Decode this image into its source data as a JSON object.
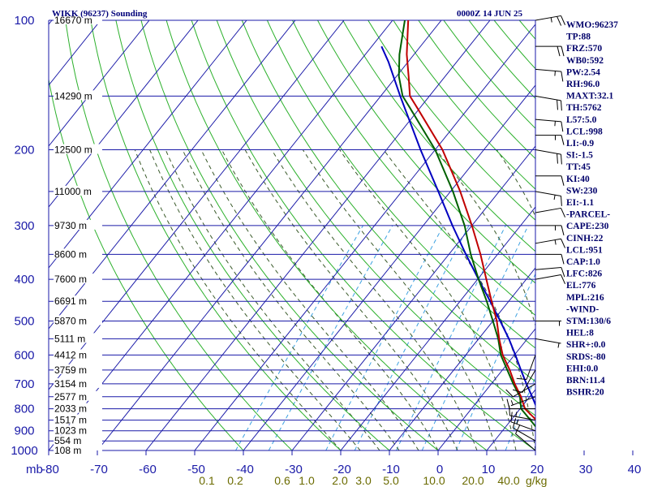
{
  "header": {
    "station": "WIKK (96237) Sounding",
    "time": "0000Z 14 JUN 25"
  },
  "indices": [
    "WMO:96237",
    "TP:88",
    "FRZ:570",
    "WB0:592",
    "PW:2.54",
    "RH:96.0",
    "MAXT:32.1",
    "TH:5762",
    "L57:5.0",
    "LCL:998",
    "LI:-0.9",
    "SI:-1.5",
    "TT:45",
    "KI:40",
    "SW:230",
    "EI:-1.1",
    "-PARCEL-",
    "CAPE:230",
    "CINH:22",
    "LCL:951",
    "CAP:1.0",
    "LFC:826",
    "EL:776",
    "MPL:216",
    "-WIND-",
    "STM:130/6",
    "HEL:8",
    "SHR+:0.0",
    "SRDS:-80",
    "EHI:0.0",
    "BRN:11.4",
    "BSHR:20"
  ],
  "colors": {
    "isobar": "#1a1aa8",
    "isotherm": "#1a1aa8",
    "dry_adiabat": "#2bb02b",
    "moist_adiabat": "#3a5a2a",
    "mixing_ratio": "#3aa0e0",
    "temperature": "#c00000",
    "dewpoint": "#006000",
    "parcel": "#0000c0",
    "wind_barb": "#000000"
  },
  "chart_data": {
    "type": "skew-t",
    "xlabel_unit": "mb",
    "mixing_ratio_unit": "g/kg",
    "pressure_levels": [
      100,
      200,
      300,
      400,
      500,
      600,
      700,
      800,
      900,
      1000
    ],
    "pressure_range": [
      100,
      1000
    ],
    "temperature_ticks": [
      -80,
      -70,
      -60,
      -50,
      -40,
      -30,
      -20,
      -10,
      0,
      10,
      20,
      30,
      40
    ],
    "temperature_tick_labels": [
      "-80",
      "-70",
      "-60",
      "-50",
      "-40",
      "-30",
      "-20",
      "-10",
      "0",
      "10",
      "20",
      "30",
      "40"
    ],
    "mixing_ratio_labels": [
      {
        "label": "0.1",
        "value": 0.1
      },
      {
        "label": "0.2",
        "value": 0.2
      },
      {
        "label": "0.6",
        "value": 0.6
      },
      {
        "label": "1.0",
        "value": 1.0
      },
      {
        "label": "2.0",
        "value": 2.0
      },
      {
        "label": "3.0",
        "value": 3.0
      },
      {
        "label": "5.0",
        "value": 5.0
      },
      {
        "label": "10.0",
        "value": 10.0
      },
      {
        "label": "20.0",
        "value": 20.0
      },
      {
        "label": "40.0",
        "value": 40.0
      }
    ],
    "height_labels": [
      {
        "p": 100,
        "label": "16670 m"
      },
      {
        "p": 150,
        "label": "14290 m"
      },
      {
        "p": 200,
        "label": "12500 m"
      },
      {
        "p": 250,
        "label": "11000 m"
      },
      {
        "p": 300,
        "label": "9730 m"
      },
      {
        "p": 350,
        "label": "8600 m"
      },
      {
        "p": 400,
        "label": "7600 m"
      },
      {
        "p": 450,
        "label": "6691 m"
      },
      {
        "p": 500,
        "label": "5870 m"
      },
      {
        "p": 550,
        "label": "5111 m"
      },
      {
        "p": 600,
        "label": "4412 m"
      },
      {
        "p": 650,
        "label": "3759 m"
      },
      {
        "p": 700,
        "label": "3154 m"
      },
      {
        "p": 750,
        "label": "2577 m"
      },
      {
        "p": 800,
        "label": "2033 m"
      },
      {
        "p": 850,
        "label": "1517 m"
      },
      {
        "p": 900,
        "label": "1023 m"
      },
      {
        "p": 950,
        "label": "554 m"
      },
      {
        "p": 1000,
        "label": "108 m"
      }
    ],
    "series": [
      {
        "key": "temperature",
        "points": [
          [
            1008,
            24.0
          ],
          [
            1000,
            23.5
          ],
          [
            950,
            20.5
          ],
          [
            900,
            17.8
          ],
          [
            850,
            15.2
          ],
          [
            800,
            11.0
          ],
          [
            750,
            8.2
          ],
          [
            700,
            4.8
          ],
          [
            650,
            1.5
          ],
          [
            600,
            -2.4
          ],
          [
            550,
            -5.8
          ],
          [
            500,
            -9.2
          ],
          [
            450,
            -13.5
          ],
          [
            400,
            -18.2
          ],
          [
            350,
            -23.5
          ],
          [
            300,
            -30.0
          ],
          [
            250,
            -38.0
          ],
          [
            200,
            -48.5
          ],
          [
            160,
            -60.5
          ],
          [
            150,
            -64.0
          ],
          [
            135,
            -67.5
          ],
          [
            120,
            -71.5
          ],
          [
            100,
            -76.8
          ]
        ]
      },
      {
        "key": "dewpoint",
        "points": [
          [
            1008,
            24.0
          ],
          [
            1000,
            23.5
          ],
          [
            950,
            20.5
          ],
          [
            900,
            17.5
          ],
          [
            850,
            14.0
          ],
          [
            800,
            10.2
          ],
          [
            750,
            8.0
          ],
          [
            700,
            4.5
          ],
          [
            650,
            1.0
          ],
          [
            600,
            -2.8
          ],
          [
            550,
            -6.0
          ],
          [
            500,
            -10.0
          ],
          [
            450,
            -14.5
          ],
          [
            400,
            -19.8
          ],
          [
            350,
            -25.5
          ],
          [
            300,
            -31.5
          ],
          [
            250,
            -39.5
          ],
          [
            200,
            -50.0
          ],
          [
            160,
            -62.0
          ],
          [
            150,
            -65.5
          ],
          [
            135,
            -69.5
          ],
          [
            120,
            -73.0
          ],
          [
            100,
            -77.5
          ]
        ]
      },
      {
        "key": "parcel",
        "points": [
          [
            1008,
            27.5
          ],
          [
            1000,
            26.5
          ],
          [
            950,
            22.0
          ],
          [
            900,
            19.0
          ],
          [
            850,
            16.0
          ],
          [
            800,
            13.5
          ],
          [
            750,
            10.5
          ],
          [
            700,
            7.2
          ],
          [
            650,
            3.8
          ],
          [
            600,
            0.2
          ],
          [
            550,
            -3.8
          ],
          [
            500,
            -8.5
          ],
          [
            450,
            -13.8
          ],
          [
            400,
            -19.8
          ],
          [
            350,
            -26.5
          ],
          [
            300,
            -34.0
          ],
          [
            250,
            -42.5
          ],
          [
            200,
            -53.0
          ],
          [
            150,
            -66.0
          ],
          [
            125,
            -74.0
          ],
          [
            115,
            -78.0
          ]
        ]
      }
    ],
    "wind_barbs": [
      {
        "p": 100,
        "dir": 80,
        "spd": 25
      },
      {
        "p": 115,
        "dir": 90,
        "spd": 20
      },
      {
        "p": 130,
        "dir": 95,
        "spd": 15
      },
      {
        "p": 150,
        "dir": 100,
        "spd": 20
      },
      {
        "p": 170,
        "dir": 95,
        "spd": 15
      },
      {
        "p": 185,
        "dir": 90,
        "spd": 15
      },
      {
        "p": 200,
        "dir": 100,
        "spd": 20
      },
      {
        "p": 230,
        "dir": 90,
        "spd": 10
      },
      {
        "p": 250,
        "dir": 100,
        "spd": 15
      },
      {
        "p": 280,
        "dir": 80,
        "spd": 10
      },
      {
        "p": 300,
        "dir": 90,
        "spd": 15
      },
      {
        "p": 330,
        "dir": 80,
        "spd": 15
      },
      {
        "p": 350,
        "dir": 90,
        "spd": 10
      },
      {
        "p": 380,
        "dir": 85,
        "spd": 10
      },
      {
        "p": 400,
        "dir": 80,
        "spd": 10
      },
      {
        "p": 500,
        "dir": 90,
        "spd": 5
      },
      {
        "p": 550,
        "dir": 100,
        "spd": 5
      },
      {
        "p": 600,
        "dir": 200,
        "spd": 10
      },
      {
        "p": 650,
        "dir": 210,
        "spd": 10
      },
      {
        "p": 700,
        "dir": 240,
        "spd": 10
      },
      {
        "p": 750,
        "dir": 250,
        "spd": 5
      },
      {
        "p": 800,
        "dir": 270,
        "spd": 10
      },
      {
        "p": 850,
        "dir": 280,
        "spd": 15
      },
      {
        "p": 900,
        "dir": 290,
        "spd": 15
      },
      {
        "p": 950,
        "dir": 300,
        "spd": 10
      },
      {
        "p": 1000,
        "dir": 310,
        "spd": 10
      }
    ]
  }
}
